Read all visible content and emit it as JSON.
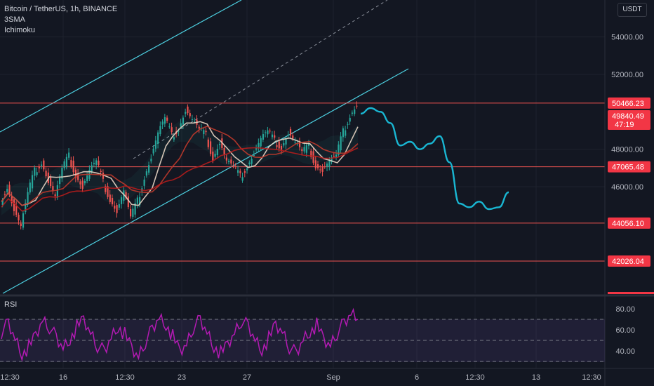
{
  "legend": {
    "symbol": "Bitcoin / TetherUS, 1h, BINANCE",
    "indicator1": "3SMA",
    "indicator2": "Ichimoku"
  },
  "currency_button": "USDT",
  "rsi": {
    "label": "RSI"
  },
  "colors": {
    "background": "#131722",
    "channel": "#4dd0e1",
    "horizontal_line": "#ef5350",
    "price_label_bg": "#f23645",
    "rsi_line": "#b31ab3",
    "projection": "#19b6d2",
    "candle_up": "#26a69a",
    "candle_down": "#ef5350"
  },
  "chart_data": [
    {
      "type": "line",
      "title": "",
      "xlabel": "",
      "ylabel": "",
      "x_ticks": [
        "12:30",
        "16",
        "12:30",
        "23",
        "27",
        "Sep",
        "6",
        "12:30",
        "13",
        "12:30"
      ],
      "y_ticks": [
        46000,
        48000,
        52000,
        54000
      ],
      "ylim": [
        39000,
        56200
      ],
      "horizontal_levels": [
        50466.23,
        47065.48,
        44056.1,
        42026.04
      ],
      "current_price": {
        "value": "49840.49",
        "countdown": "47:19"
      },
      "price_labels": [
        "50466.23",
        "49840.49",
        "47:19",
        "47065.48",
        "44056.10",
        "42026.04",
        "46000.00",
        "48000.00",
        "52000.00",
        "54000.00"
      ],
      "series": [
        {
          "values": [
            45200,
            46100,
            44800,
            43900,
            45600,
            46800,
            47400,
            46300,
            45500,
            46900,
            47600,
            46700,
            46000,
            46900,
            47300,
            46200,
            45400,
            44700,
            45800,
            44300,
            45200,
            46600,
            47600,
            48900,
            49600,
            48700,
            49200,
            50100,
            49600,
            49000,
            48700,
            47600,
            48400,
            47400,
            47000,
            46500,
            47200,
            47800,
            48600,
            48900,
            48400,
            48200,
            48900,
            48400,
            47800,
            48100,
            47200,
            46900,
            47400,
            47600,
            48900,
            49900,
            50400
          ]
        },
        {
          "values": [
            49900,
            50200,
            50000,
            49400,
            48200,
            48400,
            48000,
            48300,
            48700,
            47300,
            45100,
            44900,
            45200,
            44800,
            44900,
            45700
          ]
        }
      ]
    },
    {
      "type": "line",
      "title": "",
      "ylim": [
        30,
        90
      ],
      "y_ticks": [
        40,
        60,
        80
      ],
      "reference_lines": [
        30,
        50,
        70
      ],
      "series": [
        {
          "values": [
            58,
            66,
            50,
            36,
            44,
            56,
            70,
            63,
            52,
            41,
            50,
            63,
            71,
            58,
            45,
            39,
            51,
            62,
            56,
            44,
            35,
            49,
            60,
            70,
            64,
            54,
            41,
            47,
            63,
            69,
            56,
            43,
            38,
            47,
            58,
            69,
            63,
            49,
            40,
            52,
            66,
            59,
            44,
            37,
            49,
            57,
            65,
            52,
            46,
            58,
            66,
            74,
            70
          ]
        }
      ]
    }
  ]
}
